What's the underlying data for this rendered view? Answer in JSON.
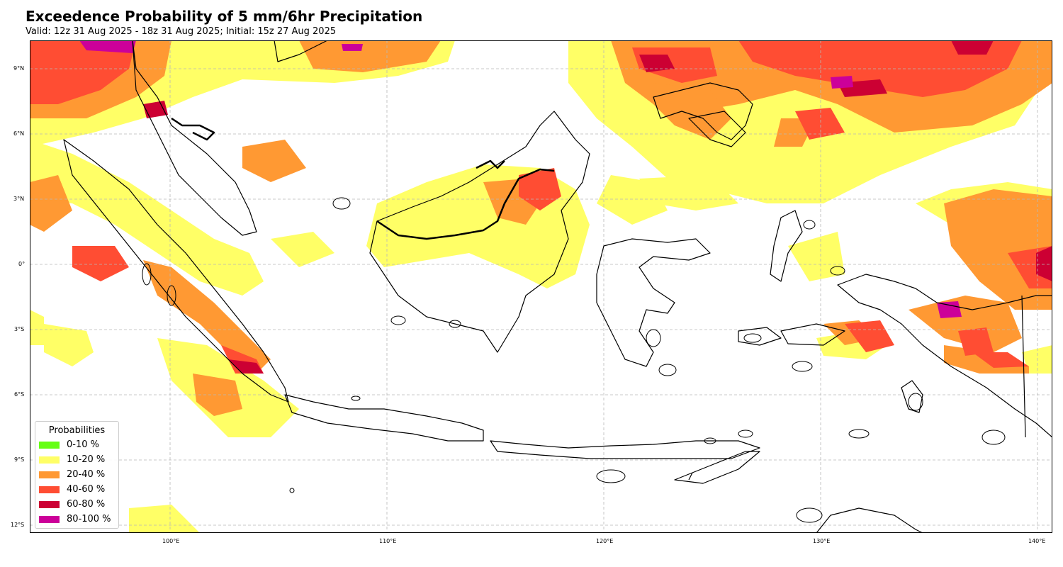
{
  "title": "Exceedence Probability of 5 mm/6hr Precipitation",
  "subtitle": "Valid: 12z 31 Aug 2025 - 18z 31 Aug 2025; Initial: 15z 27 Aug 2025",
  "axes": {
    "lon_ticks": [
      "100°E",
      "110°E",
      "120°E",
      "130°E",
      "140°E"
    ],
    "lat_ticks": [
      "9°N",
      "6°N",
      "3°N",
      "0°",
      "3°S",
      "6°S",
      "9°S",
      "12°S"
    ],
    "lon_range": [
      93.5,
      140.7
    ],
    "lat_range": [
      -12.3,
      10.4
    ],
    "grid": true
  },
  "legend": {
    "title": "Probabilities",
    "placement": "lower-left",
    "items": [
      {
        "label": "0-10 %",
        "color": "#66ff14"
      },
      {
        "label": "10-20 %",
        "color": "#ffff66"
      },
      {
        "label": "20-40 %",
        "color": "#ff9933"
      },
      {
        "label": "40-60 %",
        "color": "#ff4d33"
      },
      {
        "label": "60-80 %",
        "color": "#cc0033"
      },
      {
        "label": "80-100 %",
        "color": "#cc0099"
      }
    ]
  }
}
